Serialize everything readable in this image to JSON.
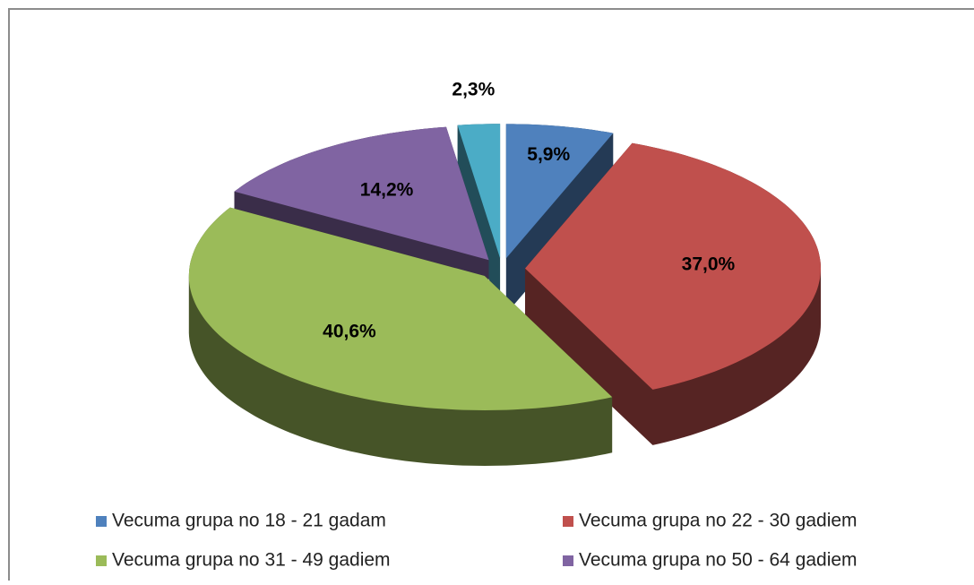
{
  "chart_data": {
    "type": "pie3d",
    "categories": [
      "Vecuma grupa no 18 - 21 gadam",
      "Vecuma grupa no 22 - 30 gadiem",
      "Vecuma grupa no 31 - 49 gadiem",
      "Vecuma grupa no 50 - 64 gadiem",
      null
    ],
    "values": [
      5.9,
      37.0,
      40.6,
      14.2,
      2.3
    ],
    "value_labels": [
      "5,9%",
      "37,0%",
      "40,6%",
      "14,2%",
      "2,3%"
    ],
    "colors": [
      "#4f81bd",
      "#c0504d",
      "#9bbb59",
      "#8064a2",
      "#4bacc6"
    ],
    "exploded": true
  }
}
